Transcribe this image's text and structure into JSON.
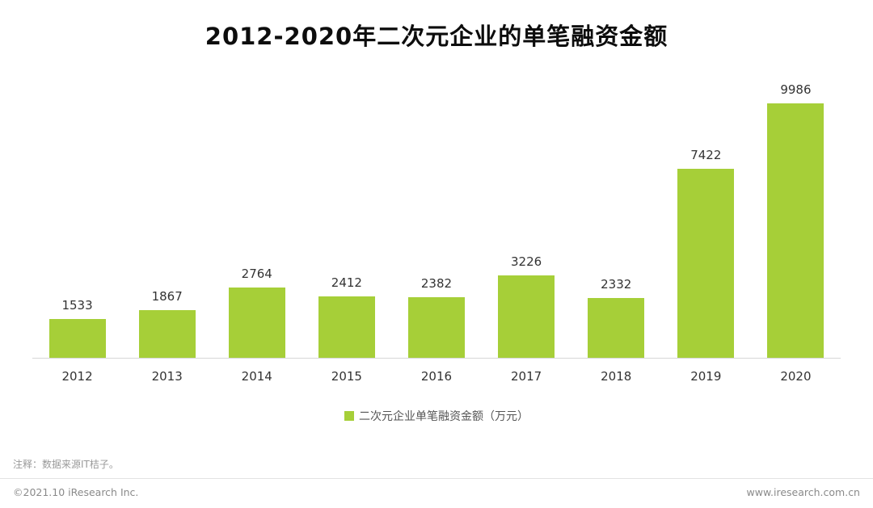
{
  "title": "2012-2020年二次元企业的单笔融资金额",
  "chart_data": {
    "type": "bar",
    "title": "2012-2020年二次元企业的单笔融资金额",
    "categories": [
      "2012",
      "2013",
      "2014",
      "2015",
      "2016",
      "2017",
      "2018",
      "2019",
      "2020"
    ],
    "values": [
      1533,
      1867,
      2764,
      2412,
      2382,
      3226,
      2332,
      7422,
      9986
    ],
    "xlabel": "",
    "ylabel": "",
    "ylim": [
      0,
      10500
    ],
    "grid": false,
    "legend": "二次元企业单笔融资金额（万元）",
    "legend_position": "bottom",
    "data_labels": true
  },
  "colors": {
    "bar": "#a6cf38",
    "title": "#0d0d0d",
    "axis_line": "#d6d6d6"
  },
  "footer": {
    "note": "注释：数据来源IT桔子。",
    "copyright": "©2021.10 iResearch Inc.",
    "website": "www.iresearch.com.cn"
  }
}
